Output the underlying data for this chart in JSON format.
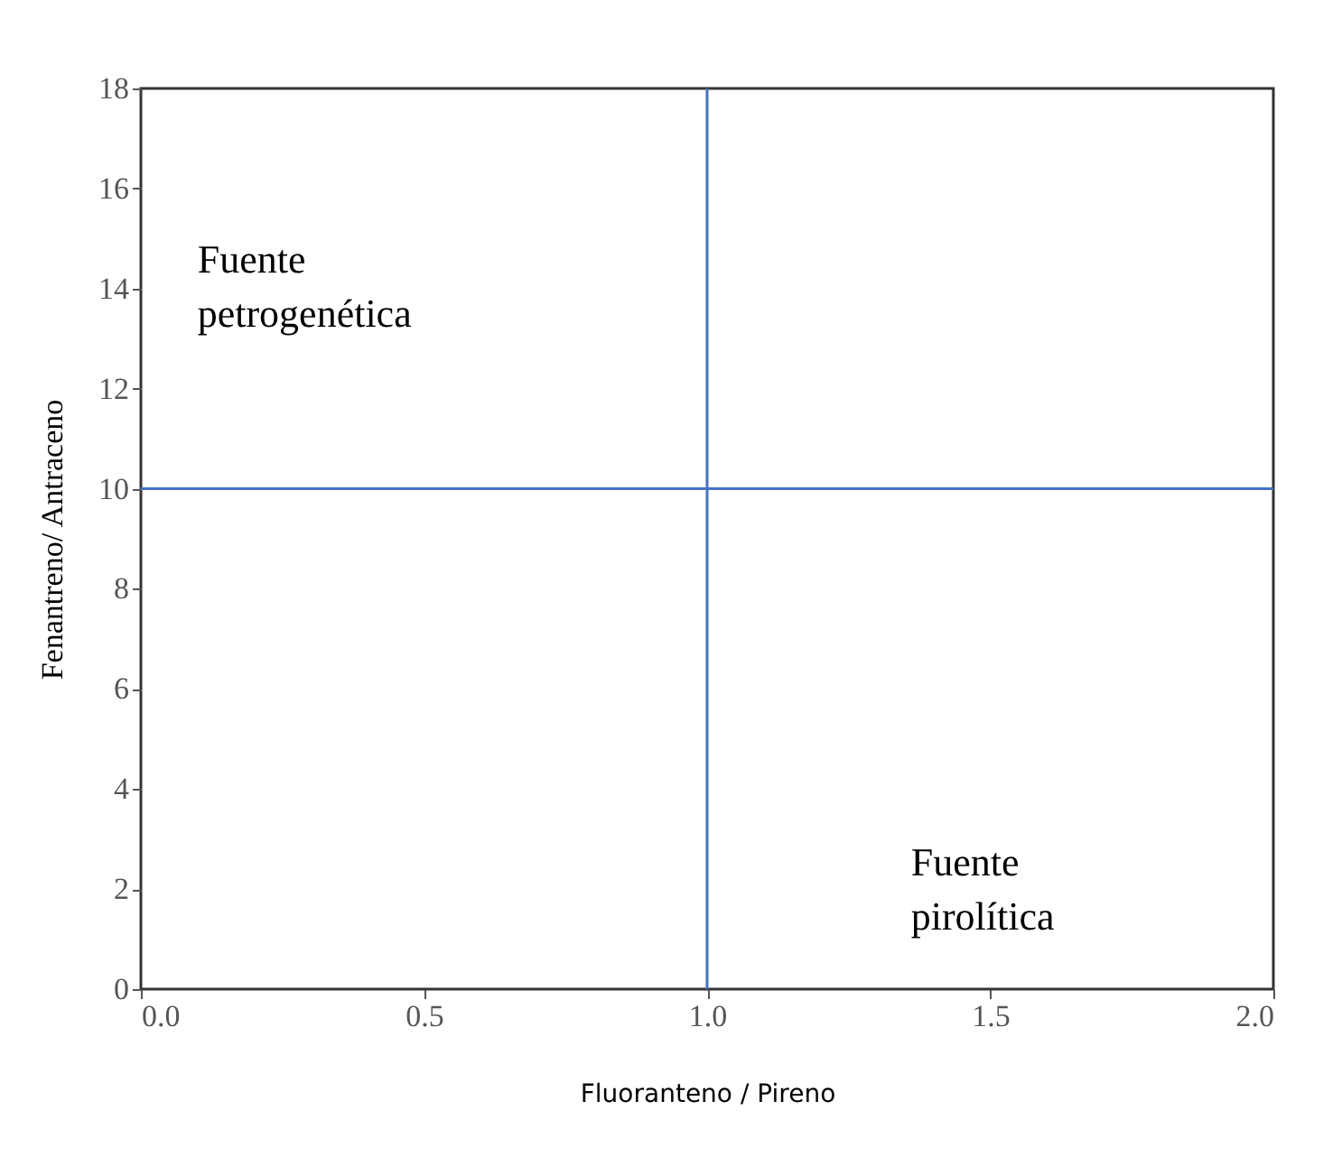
{
  "chart_data": {
    "type": "scatter",
    "xlabel": "Fluoranteno / Pireno",
    "ylabel": "Fenantreno/ Antraceno",
    "xlim": [
      0,
      2
    ],
    "ylim": [
      0,
      18
    ],
    "xticks": [
      {
        "value": 0,
        "label": "0.0"
      },
      0.5,
      {
        "value": 1,
        "label": "1.0"
      },
      1.5,
      {
        "value": 2,
        "label": "2.0"
      }
    ],
    "yticks": [
      0,
      2,
      4,
      6,
      8,
      10,
      12,
      14,
      16,
      18
    ],
    "grid": false,
    "ref_lines": [
      {
        "axis": "x",
        "value": 1,
        "color": "#4472c4"
      },
      {
        "axis": "y",
        "value": 10,
        "color": "#4472c4"
      }
    ],
    "annotations": [
      "Fuente\npetrogenética",
      "Fuente\npirolítica"
    ]
  }
}
